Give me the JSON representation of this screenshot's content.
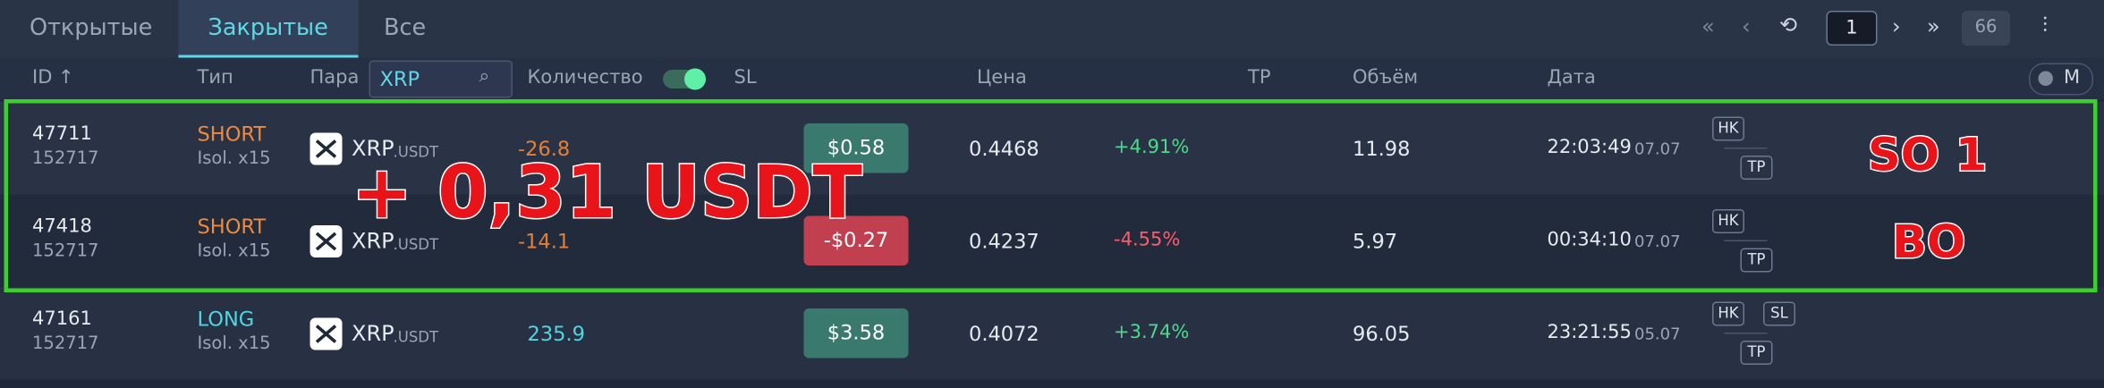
{
  "tabs": [
    "Открытые",
    "Закрытые",
    "Все"
  ],
  "pagination": {
    "page": "1",
    "total": "66"
  },
  "columns": [
    "ID ↑",
    "Тип",
    "Пара",
    "Количество",
    "SL",
    "Цена",
    "TP",
    "Объём",
    "Дата"
  ],
  "search": "XRP",
  "mode": "M",
  "rows": [
    {
      "id": "47711",
      "sub": "152717",
      "type": "SHORT",
      "margin": "Isol. x15",
      "pair": "XRP",
      "quote": ".USDT",
      "qty": "-26.8",
      "pnl": "$0.58",
      "price": "0.4468",
      "change": "+4.91%",
      "volume": "11.98",
      "time": "22:03:49",
      "date": "07.07",
      "badges_top": [
        "HK"
      ],
      "badges_bottom": [
        "TP"
      ]
    },
    {
      "id": "47418",
      "sub": "152717",
      "type": "SHORT",
      "margin": "Isol. x15",
      "pair": "XRP",
      "quote": ".USDT",
      "qty": "-14.1",
      "pnl": "-$0.27",
      "price": "0.4237",
      "change": "-4.55%",
      "volume": "5.97",
      "time": "00:34:10",
      "date": "07.07",
      "badges_top": [
        "HK"
      ],
      "badges_bottom": [
        "TP"
      ]
    },
    {
      "id": "47161",
      "sub": "152717",
      "type": "LONG",
      "margin": "Isol. x15",
      "pair": "XRP",
      "quote": ".USDT",
      "qty": "235.9",
      "pnl": "$3.58",
      "price": "0.4072",
      "change": "+3.74%",
      "volume": "96.05",
      "time": "23:21:55",
      "date": "05.07",
      "badges_top": [
        "HK",
        "SL"
      ],
      "badges_bottom": [
        "TP"
      ]
    }
  ],
  "annotations": {
    "profit": "+ 0,31 USDT",
    "labels": [
      "SO 1",
      "BO"
    ]
  }
}
